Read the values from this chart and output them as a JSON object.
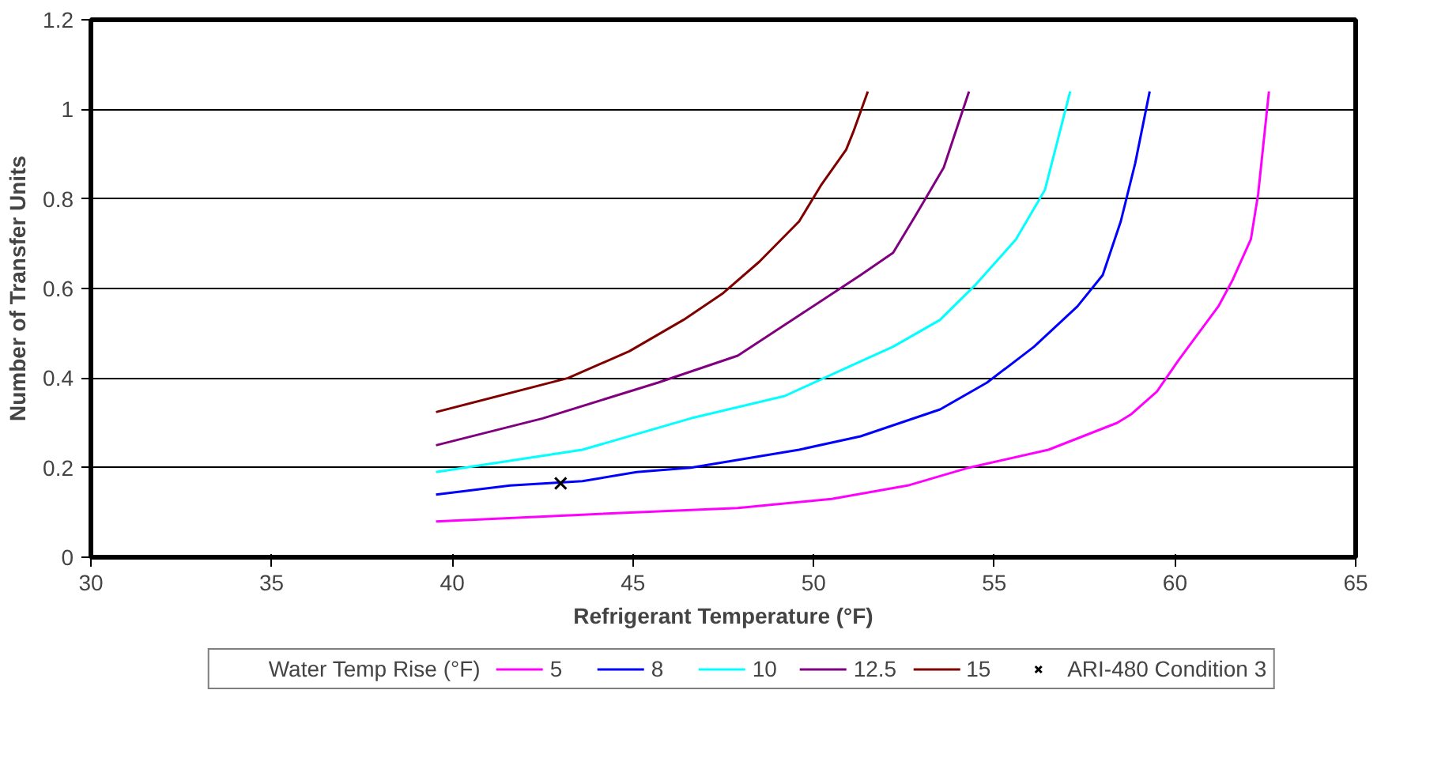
{
  "chart_data": {
    "type": "line",
    "xlabel": "Refrigerant Temperature (°F)",
    "ylabel": "Number of Transfer Units",
    "legend_title": "Water Temp Rise (°F)",
    "legend": "bottom",
    "grid": "y",
    "xlim": [
      30,
      65
    ],
    "ylim": [
      0,
      1.2
    ],
    "xticks": [
      30,
      35,
      40,
      45,
      50,
      55,
      60,
      65
    ],
    "yticks": [
      0,
      0.2,
      0.4,
      0.6,
      0.8,
      1,
      1.2
    ],
    "series": [
      {
        "name": "5",
        "color": "#ff00ff",
        "x": [
          39.55,
          43.6,
          47.9,
          50.5,
          52.6,
          54.3,
          56.5,
          58.4,
          58.8,
          59.5,
          60.1,
          61.2,
          61.6,
          62.1,
          62.3,
          62.6
        ],
        "values": [
          0.08,
          0.095,
          0.11,
          0.13,
          0.16,
          0.2,
          0.24,
          0.3,
          0.32,
          0.37,
          0.44,
          0.56,
          0.62,
          0.71,
          0.81,
          1.04
        ]
      },
      {
        "name": "8",
        "color": "#0000ff",
        "x": [
          39.55,
          41.6,
          43.6,
          45.1,
          46.6,
          49.6,
          51.3,
          53.5,
          54.8,
          56.1,
          57.3,
          58.0,
          58.5,
          58.9,
          59.3
        ],
        "values": [
          0.14,
          0.16,
          0.17,
          0.19,
          0.2,
          0.24,
          0.27,
          0.33,
          0.39,
          0.47,
          0.56,
          0.63,
          0.75,
          0.88,
          1.04
        ]
      },
      {
        "name": "10",
        "color": "#00ffff",
        "x": [
          39.55,
          43.6,
          46.6,
          49.2,
          51.1,
          52.2,
          53.5,
          54.5,
          55.6,
          56.4,
          57.1
        ],
        "values": [
          0.19,
          0.24,
          0.31,
          0.36,
          0.43,
          0.47,
          0.53,
          0.61,
          0.71,
          0.82,
          1.04
        ]
      },
      {
        "name": "12.5",
        "color": "#800080",
        "x": [
          39.55,
          42.5,
          45.7,
          47.9,
          49.6,
          51.3,
          52.2,
          52.8,
          53.6,
          54.3
        ],
        "values": [
          0.25,
          0.31,
          0.39,
          0.45,
          0.54,
          0.63,
          0.68,
          0.76,
          0.87,
          1.04
        ]
      },
      {
        "name": "15",
        "color": "#800000",
        "x": [
          39.55,
          43.2,
          44.9,
          46.4,
          47.5,
          48.5,
          49.6,
          50.2,
          50.9,
          51.1,
          51.5
        ],
        "values": [
          0.324,
          0.4,
          0.46,
          0.53,
          0.59,
          0.66,
          0.75,
          0.83,
          0.91,
          0.95,
          1.04
        ]
      },
      {
        "name": "ARI-480 Condition 3",
        "type": "scatter",
        "marker": "cross",
        "color": "#000000",
        "x": [
          43.0
        ],
        "values": [
          0.165
        ]
      }
    ]
  }
}
